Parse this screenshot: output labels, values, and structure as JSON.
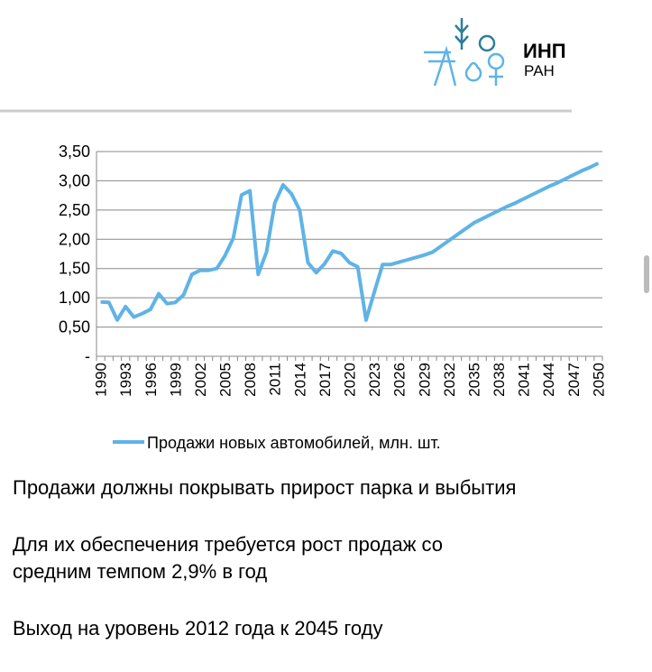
{
  "logo": {
    "line1": "ИНП",
    "line2": "РАН"
  },
  "chart_data": {
    "type": "line",
    "categories": [
      "1990",
      null,
      null,
      "1993",
      null,
      null,
      "1996",
      null,
      null,
      "1999",
      null,
      null,
      "2002",
      null,
      null,
      "2005",
      null,
      null,
      "2008",
      null,
      null,
      "2011",
      null,
      null,
      "2014",
      null,
      null,
      "2017",
      null,
      null,
      "2020",
      null,
      null,
      "2023",
      null,
      null,
      "2026",
      null,
      null,
      "2029",
      null,
      null,
      "2032",
      null,
      null,
      "2035",
      null,
      null,
      "2038",
      null,
      null,
      "2041",
      null,
      null,
      "2044",
      null,
      null,
      "2047",
      null,
      null,
      "2050"
    ],
    "series": [
      {
        "name": "Продажи новых автомобилей, млн. шт.",
        "color": "#5fb3e6",
        "values": [
          0.93,
          0.92,
          0.62,
          0.85,
          0.67,
          0.73,
          0.8,
          1.07,
          0.9,
          0.92,
          1.05,
          1.4,
          1.47,
          1.47,
          1.5,
          1.72,
          2.02,
          2.76,
          2.83,
          1.4,
          1.78,
          2.62,
          2.93,
          2.78,
          2.5,
          1.6,
          1.43,
          1.58,
          1.8,
          1.76,
          1.6,
          1.53,
          0.62,
          1.1,
          1.57,
          1.57,
          1.61,
          1.65,
          1.69,
          1.73,
          1.78,
          1.88,
          1.98,
          2.08,
          2.18,
          2.28,
          2.35,
          2.42,
          2.49,
          2.56,
          2.62,
          2.69,
          2.76,
          2.83,
          2.9,
          2.96,
          3.03,
          3.1,
          3.17,
          3.23,
          3.3
        ]
      }
    ],
    "ylim": [
      0,
      3.5
    ],
    "yticks": [
      {
        "value": 0,
        "label": "-"
      },
      {
        "value": 0.5,
        "label": "0,50"
      },
      {
        "value": 1,
        "label": "1,00"
      },
      {
        "value": 1.5,
        "label": "1,50"
      },
      {
        "value": 2,
        "label": "2,00"
      },
      {
        "value": 2.5,
        "label": "2,50"
      },
      {
        "value": 3,
        "label": "3,00"
      },
      {
        "value": 3.5,
        "label": "3,50"
      }
    ],
    "grid": true,
    "legend": "bottom"
  },
  "notes": [
    [
      "Продажи должны покрывать прирост парка и выбытия"
    ],
    [
      "Для их обеспечения требуется рост продаж со",
      "средним темпом 2,9% в год"
    ],
    [
      "Выход на уровень 2012 года к 2045 году"
    ]
  ]
}
